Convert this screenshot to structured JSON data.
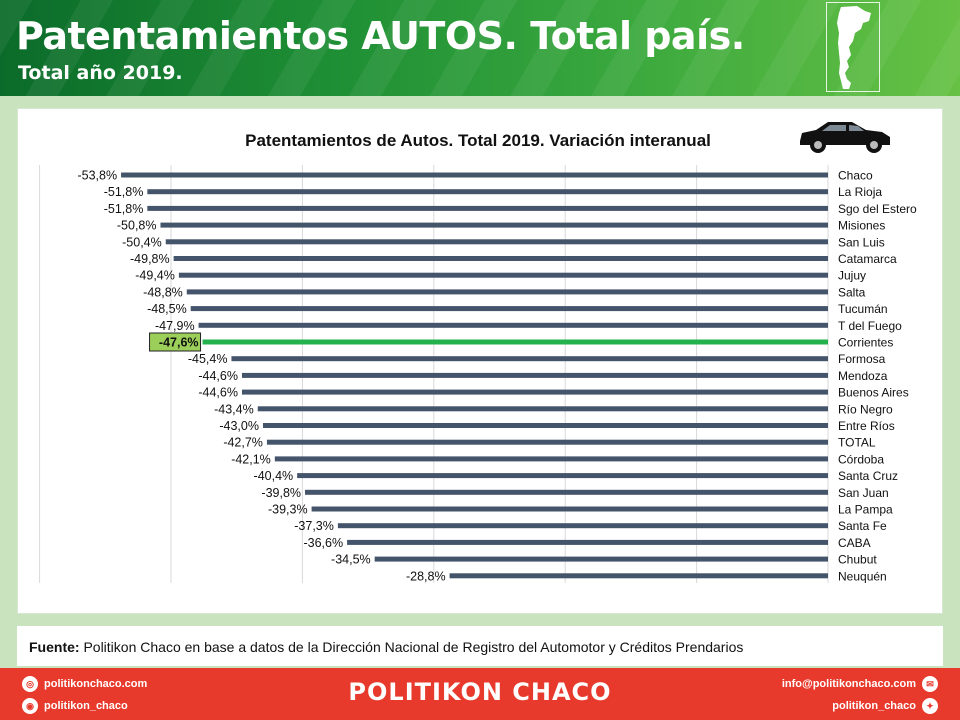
{
  "header": {
    "title": "Patentamientos AUTOS. Total país.",
    "subtitle": "Total año 2019."
  },
  "chart_data": {
    "type": "bar",
    "orientation": "horizontal",
    "title": "Patentamientos de Autos. Total 2019. Variación interanual",
    "xlim": [
      -60,
      0
    ],
    "grid": true,
    "bar_color": "#44546a",
    "highlight_color": "#22b14c",
    "highlight_label_bg": "#9bcf5a",
    "highlight_category": "Corrientes",
    "categories": [
      "Chaco",
      "La Rioja",
      "Sgo del Estero",
      "Misiones",
      "San Luis",
      "Catamarca",
      "Jujuy",
      "Salta",
      "Tucumán",
      "T del Fuego",
      "Corrientes",
      "Formosa",
      "Mendoza",
      "Buenos Aires",
      "Río Negro",
      "Entre Ríos",
      "TOTAL",
      "Córdoba",
      "Santa Cruz",
      "San Juan",
      "La Pampa",
      "Santa Fe",
      "CABA",
      "Chubut",
      "Neuquén"
    ],
    "values": [
      -53.8,
      -51.8,
      -51.8,
      -50.8,
      -50.4,
      -49.8,
      -49.4,
      -48.8,
      -48.5,
      -47.9,
      -47.6,
      -45.4,
      -44.6,
      -44.6,
      -43.4,
      -43.0,
      -42.7,
      -42.1,
      -40.4,
      -39.8,
      -39.3,
      -37.3,
      -36.6,
      -34.5,
      -28.8
    ],
    "labels": [
      "-53,8%",
      "-51,8%",
      "-51,8%",
      "-50,8%",
      "-50,4%",
      "-49,8%",
      "-49,4%",
      "-48,8%",
      "-48,5%",
      "-47,9%",
      "-47,6%",
      "-45,4%",
      "-44,6%",
      "-44,6%",
      "-43,4%",
      "-43,0%",
      "-42,7%",
      "-42,1%",
      "-40,4%",
      "-39,8%",
      "-39,3%",
      "-37,3%",
      "-36,6%",
      "-34,5%",
      "-28,8%"
    ]
  },
  "source": {
    "label": "Fuente:",
    "text": " Politikon Chaco en base a datos de la Dirección Nacional de Registro del Automotor y Créditos Prendarios"
  },
  "footer": {
    "website": "politikonchaco.com",
    "instagram": "politikon_chaco",
    "brand": "POLITIKON CHACO",
    "email": "info@politikonchaco.com",
    "twitter": "politikon_chaco"
  }
}
